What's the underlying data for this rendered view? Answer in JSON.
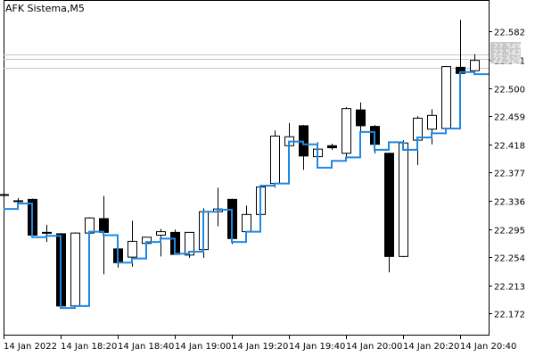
{
  "chart_data": {
    "type": "candlestick",
    "title": "AFK Sistema,M5",
    "ylim": [
      22.14,
      22.62
    ],
    "y_ticks": [
      "22.582",
      "22.541",
      "22.500",
      "22.459",
      "22.418",
      "22.377",
      "22.336",
      "22.295",
      "22.254",
      "22.213",
      "22.172"
    ],
    "x_ticks": [
      {
        "label": "14 Jan 2022",
        "index": 0
      },
      {
        "label": "14 Jan 18:20",
        "index": 4
      },
      {
        "label": "14 Jan 18:40",
        "index": 8
      },
      {
        "label": "14 Jan 19:00",
        "index": 12
      },
      {
        "label": "14 Jan 19:20",
        "index": 16
      },
      {
        "label": "14 Jan 19:40",
        "index": 20
      },
      {
        "label": "14 Jan 20:00",
        "index": 24
      },
      {
        "label": "14 Jan 20:20",
        "index": 28
      },
      {
        "label": "14 Jan 20:40",
        "index": 32
      }
    ],
    "price_labels": [
      "22.549",
      "22.542",
      "22.529"
    ],
    "price_lines": [
      22.549,
      22.542,
      22.529
    ],
    "colors": {
      "grid": "#c8c8c8",
      "blue_line": "#1e88e5",
      "price_label_bg": "#c8c8c8"
    },
    "candles": [
      {
        "o": 22.345,
        "h": 22.378,
        "l": 22.33,
        "c": 22.345
      },
      {
        "o": 22.336,
        "h": 22.34,
        "l": 22.324,
        "c": 22.336
      },
      {
        "o": 22.338,
        "h": 22.339,
        "l": 22.283,
        "c": 22.286
      },
      {
        "o": 22.29,
        "h": 22.301,
        "l": 22.276,
        "c": 22.29
      },
      {
        "o": 22.288,
        "h": 22.289,
        "l": 22.181,
        "c": 22.183
      },
      {
        "o": 22.183,
        "h": 22.29,
        "l": 22.18,
        "c": 22.289
      },
      {
        "o": 22.289,
        "h": 22.312,
        "l": 22.263,
        "c": 22.311
      },
      {
        "o": 22.31,
        "h": 22.343,
        "l": 22.229,
        "c": 22.29
      },
      {
        "o": 22.266,
        "h": 22.267,
        "l": 22.239,
        "c": 22.246
      },
      {
        "o": 22.254,
        "h": 22.307,
        "l": 22.24,
        "c": 22.277
      },
      {
        "o": 22.274,
        "h": 22.283,
        "l": 22.254,
        "c": 22.283
      },
      {
        "o": 22.286,
        "h": 22.295,
        "l": 22.255,
        "c": 22.291
      },
      {
        "o": 22.29,
        "h": 22.294,
        "l": 22.258,
        "c": 22.258
      },
      {
        "o": 22.257,
        "h": 22.29,
        "l": 22.253,
        "c": 22.29
      },
      {
        "o": 22.265,
        "h": 22.325,
        "l": 22.253,
        "c": 22.32
      },
      {
        "o": 22.32,
        "h": 22.355,
        "l": 22.299,
        "c": 22.324
      },
      {
        "o": 22.338,
        "h": 22.339,
        "l": 22.273,
        "c": 22.281
      },
      {
        "o": 22.291,
        "h": 22.329,
        "l": 22.278,
        "c": 22.316
      },
      {
        "o": 22.316,
        "h": 22.358,
        "l": 22.313,
        "c": 22.356
      },
      {
        "o": 22.361,
        "h": 22.438,
        "l": 22.355,
        "c": 22.43
      },
      {
        "o": 22.416,
        "h": 22.449,
        "l": 22.405,
        "c": 22.429
      },
      {
        "o": 22.445,
        "h": 22.446,
        "l": 22.381,
        "c": 22.401
      },
      {
        "o": 22.4,
        "h": 22.421,
        "l": 22.385,
        "c": 22.411
      },
      {
        "o": 22.416,
        "h": 22.419,
        "l": 22.41,
        "c": 22.413
      },
      {
        "o": 22.405,
        "h": 22.472,
        "l": 22.4,
        "c": 22.47
      },
      {
        "o": 22.468,
        "h": 22.479,
        "l": 22.433,
        "c": 22.445
      },
      {
        "o": 22.444,
        "h": 22.446,
        "l": 22.405,
        "c": 22.418
      },
      {
        "o": 22.405,
        "h": 22.406,
        "l": 22.232,
        "c": 22.255
      },
      {
        "o": 22.255,
        "h": 22.424,
        "l": 22.254,
        "c": 22.42
      },
      {
        "o": 22.424,
        "h": 22.459,
        "l": 22.388,
        "c": 22.456
      },
      {
        "o": 22.44,
        "h": 22.469,
        "l": 22.418,
        "c": 22.46
      },
      {
        "o": 22.441,
        "h": 22.532,
        "l": 22.44,
        "c": 22.531
      },
      {
        "o": 22.53,
        "h": 22.599,
        "l": 22.518,
        "c": 22.521
      },
      {
        "o": 22.525,
        "h": 22.549,
        "l": 22.521,
        "c": 22.54
      }
    ],
    "blue_line": [
      22.324,
      22.332,
      22.283,
      22.285,
      22.18,
      22.183,
      22.291,
      22.286,
      22.246,
      22.252,
      22.276,
      22.281,
      22.259,
      22.262,
      22.32,
      22.323,
      22.276,
      22.291,
      22.358,
      22.361,
      22.422,
      22.418,
      22.384,
      22.394,
      22.399,
      22.436,
      22.41,
      22.421,
      22.41,
      22.428,
      22.434,
      22.441,
      22.523,
      22.52
    ]
  }
}
